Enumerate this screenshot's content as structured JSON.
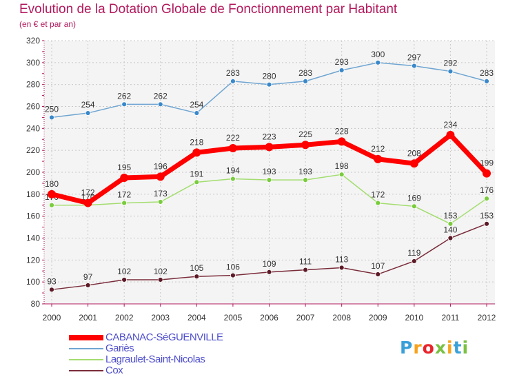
{
  "title": "Evolution de la Dotation Globale de Fonctionnement par Habitant",
  "subtitle": "(en € et par an)",
  "chart_data": {
    "type": "line",
    "x": [
      2000,
      2001,
      2002,
      2003,
      2004,
      2005,
      2006,
      2007,
      2008,
      2009,
      2010,
      2011,
      2012
    ],
    "ylim": [
      80,
      320
    ],
    "yticks": [
      80,
      100,
      120,
      140,
      160,
      180,
      200,
      220,
      240,
      260,
      280,
      300,
      320
    ],
    "grid": true,
    "legend_placement": "bottom-left",
    "series": [
      {
        "name": "Gariès",
        "color": "#6fa5d2",
        "marker": "#3a88c9",
        "values": [
          250,
          254,
          262,
          262,
          254,
          283,
          280,
          283,
          293,
          300,
          297,
          292,
          283
        ]
      },
      {
        "name": "Lagraulet-Saint-Nicolas",
        "color": "#a3dd6f",
        "marker": "#7acb3d",
        "values": [
          170,
          170,
          172,
          173,
          191,
          194,
          193,
          193,
          198,
          172,
          169,
          153,
          176
        ]
      },
      {
        "name": "Cox",
        "color": "#7a2c3a",
        "marker": "#5c1a26",
        "values": [
          93,
          97,
          102,
          102,
          105,
          106,
          109,
          111,
          113,
          107,
          119,
          140,
          153
        ]
      },
      {
        "name": "CABANAC-SéGUENVILLE",
        "color": "#ff0000",
        "marker": "#ff0000",
        "values": [
          180,
          172,
          195,
          196,
          218,
          222,
          223,
          225,
          228,
          212,
          208,
          234,
          199
        ]
      }
    ],
    "legend_order": [
      "CABANAC-SéGUENVILLE",
      "Gariès",
      "Lagraulet-Saint-Nicolas",
      "Cox"
    ]
  },
  "logo": {
    "letters": [
      "P",
      "r",
      "o",
      "x",
      "i",
      "t",
      "i"
    ],
    "colors": [
      "#3aa0d8",
      "#f7a21c",
      "#e8242a",
      "#7ac142",
      "#f7a21c",
      "#3aa0d8",
      "#7ac142"
    ]
  }
}
